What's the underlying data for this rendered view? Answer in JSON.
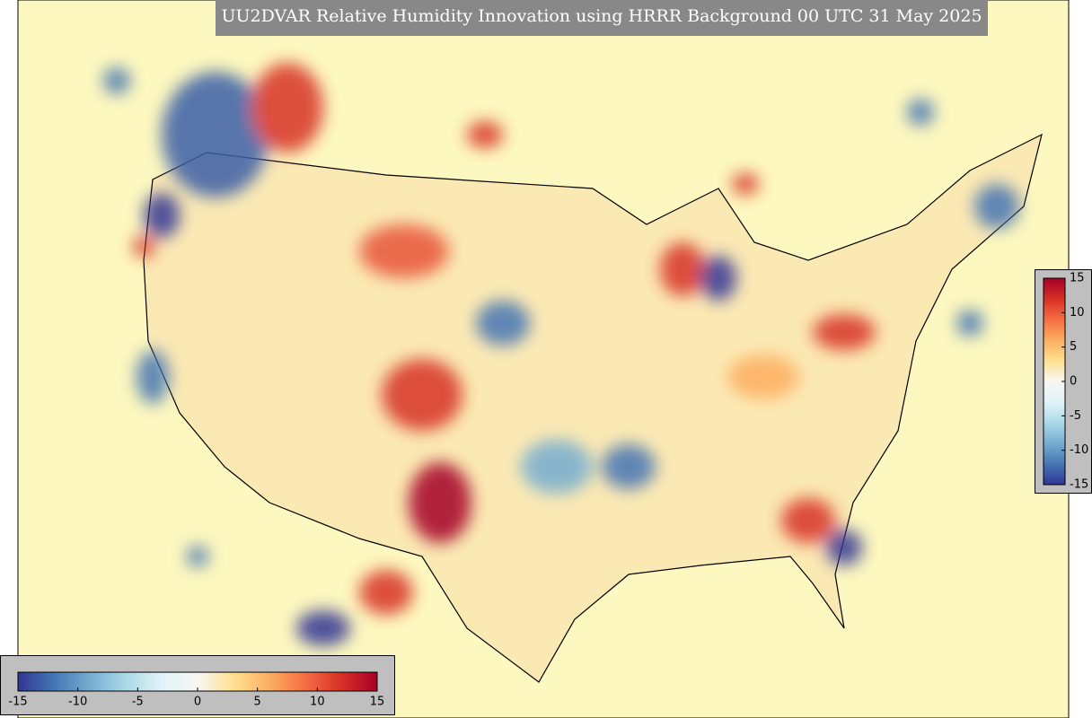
{
  "header": {
    "title": "UU2DVAR Relative Humidity Innovation using HRRR Background 00 UTC 31 May 2025"
  },
  "colorbar_horizontal": {
    "lim": [
      -15,
      15
    ],
    "ticks": [
      -15,
      -10,
      -5,
      0,
      5,
      10,
      15
    ],
    "colors": [
      "#313695",
      "#4575b4",
      "#74add1",
      "#abd9e9",
      "#e0f3f8",
      "#f7f7f2",
      "#fee090",
      "#fdae61",
      "#f46d43",
      "#d73027",
      "#a50026"
    ]
  },
  "colorbar_vertical": {
    "lim": [
      -15,
      15
    ],
    "ticks": [
      15,
      10,
      5,
      0,
      -5,
      -10,
      -15
    ],
    "colors": [
      "#313695",
      "#4575b4",
      "#74add1",
      "#abd9e9",
      "#e0f3f8",
      "#f7f7f2",
      "#fee090",
      "#fdae61",
      "#f46d43",
      "#d73027",
      "#a50026"
    ]
  }
}
